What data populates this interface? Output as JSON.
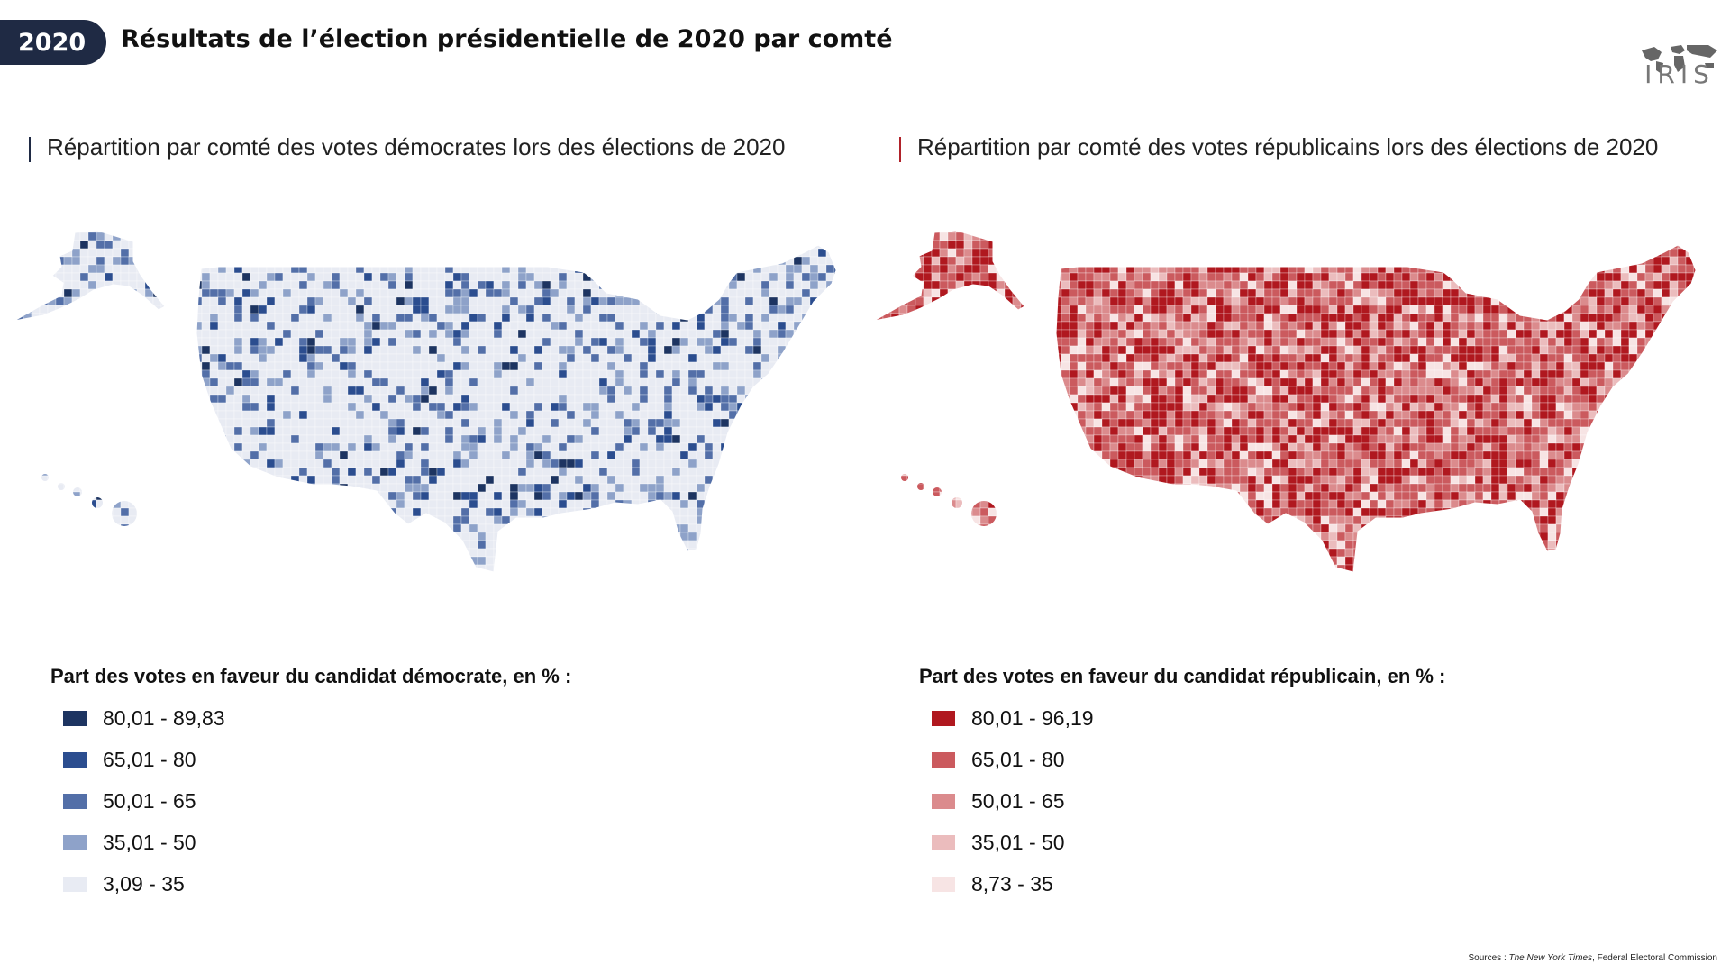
{
  "header": {
    "year": "2020",
    "title": "Résultats de l’élection présidentielle de 2020 par comté",
    "logo": "IRIS"
  },
  "maps": {
    "democrat": {
      "subtitle": "Répartition par comté des votes démocrates lors des élections de 2020",
      "legend_title": "Part des votes en faveur du candidat démocrate, en % :",
      "legend": [
        {
          "label": "80,01 - 89,83",
          "color": "#1d3461"
        },
        {
          "label": "65,01 - 80",
          "color": "#2b4d8f"
        },
        {
          "label": "50,01 - 65",
          "color": "#536fa8"
        },
        {
          "label": "35,01 - 50",
          "color": "#8ea2c9"
        },
        {
          "label": "3,09 - 35",
          "color": "#e8ebf3"
        }
      ]
    },
    "republican": {
      "subtitle": "Répartition par comté des votes républicains lors des élections de 2020",
      "legend_title": "Part des votes en faveur du candidat républicain, en % :",
      "legend": [
        {
          "label": "80,01 - 96,19",
          "color": "#b0181f"
        },
        {
          "label": "65,01 - 80",
          "color": "#cb5a5e"
        },
        {
          "label": "50,01 - 65",
          "color": "#db8b8d"
        },
        {
          "label": "35,01 - 50",
          "color": "#ebbcbd"
        },
        {
          "label": "8,73 - 35",
          "color": "#f7e4e4"
        }
      ]
    }
  },
  "source": {
    "prefix": "Sources : ",
    "publication": "The New York Times",
    "rest": ", Federal Electoral Commission"
  }
}
